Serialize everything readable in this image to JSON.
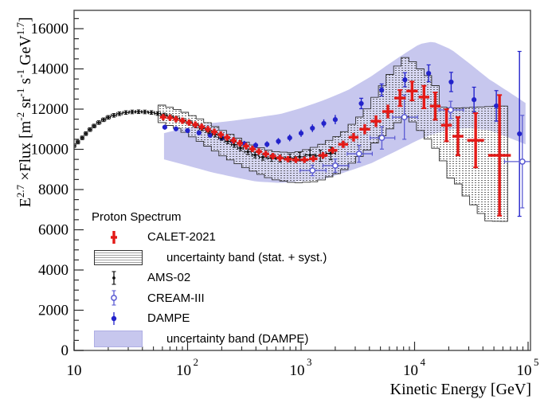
{
  "figure": {
    "background": "#ffffff"
  },
  "axes": {
    "x_label": "Kinetic Energy [GeV]",
    "y_label_segments": [
      {
        "t": "E",
        "sup": 0
      },
      {
        "t": "2.7",
        "sup": 1
      },
      {
        "t": " ×Flux [m",
        "sup": 0
      },
      {
        "t": "-2",
        "sup": 1
      },
      {
        "t": " sr",
        "sup": 0
      },
      {
        "t": "-1",
        "sup": 1
      },
      {
        "t": " s",
        "sup": 0
      },
      {
        "t": "-1",
        "sup": 1
      },
      {
        "t": " GeV",
        "sup": 0
      },
      {
        "t": "1.7",
        "sup": 1
      },
      {
        "t": "]",
        "sup": 0
      }
    ],
    "x_ticks": [
      {
        "v": 10,
        "base": "10",
        "exp": ""
      },
      {
        "v": 100,
        "base": "10",
        "exp": "2"
      },
      {
        "v": 1000,
        "base": "10",
        "exp": "3"
      },
      {
        "v": 10000,
        "base": "10",
        "exp": "4"
      },
      {
        "v": 100000,
        "base": "10",
        "exp": "5"
      }
    ],
    "y_ticks": [
      {
        "v": 0,
        "label": "0"
      },
      {
        "v": 2000,
        "label": "2000"
      },
      {
        "v": 4000,
        "label": "4000"
      },
      {
        "v": 6000,
        "label": "6000"
      },
      {
        "v": 8000,
        "label": "8000"
      },
      {
        "v": 10000,
        "label": "10000"
      },
      {
        "v": 12000,
        "label": "12000"
      },
      {
        "v": 14000,
        "label": "14000"
      },
      {
        "v": 16000,
        "label": "16000"
      }
    ]
  },
  "legend": {
    "title": "Proton Spectrum",
    "entries": [
      {
        "label": "CALET-2021",
        "marker": "calet"
      },
      {
        "label": "uncertainty band (stat. + syst.)",
        "marker": "band-hatched"
      },
      {
        "label": "AMS-02",
        "marker": "ams"
      },
      {
        "label": "CREAM-III",
        "marker": "cream"
      },
      {
        "label": "DAMPE",
        "marker": "dampe"
      },
      {
        "label": "uncertainty band (DAMPE)",
        "marker": "band-solid"
      }
    ]
  },
  "chart_data": {
    "type": "scatter",
    "title": "Proton Spectrum",
    "xlabel": "Kinetic Energy [GeV]",
    "ylabel": "E^2.7 x Flux [m^-2 sr^-1 s^-1 GeV^1.7]",
    "x_scale": "log",
    "xlim": [
      10,
      100000
    ],
    "ylim": [
      0,
      16900
    ],
    "grid": false,
    "colors": {
      "calet": "#e31a17",
      "ams": "#111111",
      "cream": "#5b5bd3",
      "dampe": "#2323cb",
      "dampe_band": "#c7c7ee",
      "hatch_outline": "#2f2f2f"
    },
    "series": [
      {
        "name": "DAMPE",
        "marker": "filled-circle",
        "points": [
          [
            63,
            11100,
            120
          ],
          [
            79,
            11020,
            120
          ],
          [
            100,
            10930,
            120
          ],
          [
            126,
            10820,
            120
          ],
          [
            158,
            10700,
            130
          ],
          [
            200,
            10560,
            130
          ],
          [
            251,
            10420,
            140
          ],
          [
            316,
            10280,
            140
          ],
          [
            398,
            10200,
            150
          ],
          [
            501,
            10250,
            150
          ],
          [
            631,
            10400,
            160
          ],
          [
            794,
            10570,
            170
          ],
          [
            1000,
            10800,
            180
          ],
          [
            1259,
            11050,
            190
          ],
          [
            1585,
            11290,
            200
          ],
          [
            2000,
            11480,
            230
          ],
          [
            3390,
            12280,
            260
          ],
          [
            5130,
            12950,
            300
          ],
          [
            8220,
            13460,
            350
          ],
          [
            13300,
            13780,
            420
          ],
          [
            21000,
            13350,
            480
          ],
          [
            33400,
            12470,
            620
          ],
          [
            52500,
            12160,
            760
          ],
          [
            84000,
            10770,
            4100
          ]
        ]
      },
      {
        "name": "CREAM-III",
        "marker": "open-circle",
        "points": [
          [
            1260,
            8950,
            260,
            980,
            1660
          ],
          [
            2000,
            9190,
            330,
            1560,
            2630
          ],
          [
            3240,
            9780,
            420,
            2550,
            4240
          ],
          [
            5150,
            10570,
            560,
            4060,
            6700
          ],
          [
            8130,
            11600,
            1100,
            6400,
            10600
          ],
          [
            20800,
            11960,
            430,
            16400,
            27000
          ],
          [
            89000,
            9390,
            2300,
            62000,
            108000
          ]
        ]
      },
      {
        "name": "AMS-02",
        "marker": "dot-errorbar",
        "points": [
          [
            10,
            10180,
            90
          ],
          [
            10.8,
            10360,
            90
          ],
          [
            11.8,
            10570,
            90
          ],
          [
            12.7,
            10780,
            90
          ],
          [
            13.8,
            10980,
            90
          ],
          [
            15,
            11160,
            90
          ],
          [
            16.5,
            11330,
            90
          ],
          [
            18.2,
            11470,
            90
          ],
          [
            20,
            11590,
            90
          ],
          [
            22.4,
            11690,
            90
          ],
          [
            25.1,
            11770,
            90
          ],
          [
            28.6,
            11830,
            90
          ],
          [
            32.5,
            11860,
            90
          ],
          [
            37,
            11870,
            90
          ],
          [
            42,
            11860,
            90
          ],
          [
            48,
            11830,
            90
          ],
          [
            54.5,
            11780,
            90
          ],
          [
            62,
            11710,
            90
          ],
          [
            70.6,
            11630,
            90
          ],
          [
            80.3,
            11540,
            100
          ],
          [
            91.5,
            11430,
            100
          ],
          [
            104,
            11310,
            110
          ],
          [
            118.5,
            11180,
            110
          ],
          [
            135,
            11040,
            110
          ],
          [
            154,
            10890,
            110
          ],
          [
            175,
            10740,
            120
          ],
          [
            199,
            10570,
            120
          ],
          [
            226,
            10400,
            120
          ],
          [
            258,
            10230,
            130
          ],
          [
            293,
            10060,
            130
          ],
          [
            340,
            9880,
            140
          ],
          [
            393,
            9720,
            140
          ],
          [
            461,
            9610,
            150
          ],
          [
            550,
            9560,
            160
          ],
          [
            655,
            9540,
            170
          ],
          [
            798,
            9570,
            190
          ],
          [
            972,
            9630,
            210
          ],
          [
            1199,
            9720,
            240
          ],
          [
            1479,
            9680,
            280
          ],
          [
            1825,
            9800,
            320
          ]
        ]
      },
      {
        "name": "CALET-2021",
        "marker": "thick-cross",
        "points": [
          [
            61,
            11600,
            0
          ],
          [
            70,
            11570,
            0
          ],
          [
            79,
            11500,
            0
          ],
          [
            90,
            11420,
            0
          ],
          [
            103,
            11330,
            0
          ],
          [
            117,
            11230,
            0
          ],
          [
            133,
            11120,
            0
          ],
          [
            151,
            11000,
            0
          ],
          [
            172,
            10870,
            0
          ],
          [
            196,
            10730,
            0
          ],
          [
            223,
            10590,
            0
          ],
          [
            254,
            10440,
            0
          ],
          [
            289,
            10300,
            0
          ],
          [
            328,
            10160,
            0
          ],
          [
            373,
            10020,
            0
          ],
          [
            425,
            9890,
            0
          ],
          [
            489,
            9770,
            0
          ],
          [
            564,
            9660,
            0
          ],
          [
            651,
            9570,
            0
          ],
          [
            765,
            9510,
            0
          ],
          [
            899,
            9480,
            0
          ],
          [
            1070,
            9480,
            100
          ],
          [
            1280,
            9530,
            110
          ],
          [
            1560,
            9700,
            130
          ],
          [
            1900,
            9950,
            150
          ],
          [
            2350,
            10250,
            180
          ],
          [
            2900,
            10600,
            210
          ],
          [
            3640,
            11000,
            250
          ],
          [
            4570,
            11400,
            290
          ],
          [
            5820,
            11880,
            340
          ],
          [
            7440,
            12550,
            400
          ],
          [
            9500,
            12900,
            470
          ],
          [
            12100,
            12600,
            560
          ],
          [
            15200,
            12150,
            680
          ],
          [
            19100,
            11200,
            800
          ],
          [
            24100,
            10650,
            950
          ],
          [
            34500,
            10450,
            1350
          ],
          [
            56000,
            9700,
            3000
          ]
        ]
      }
    ],
    "bands": [
      {
        "name": "uncertainty band (DAMPE)",
        "style": "solid",
        "points": [
          [
            62,
            10800,
            9500
          ],
          [
            100,
            11100,
            9190
          ],
          [
            160,
            11300,
            8870
          ],
          [
            250,
            11420,
            8630
          ],
          [
            400,
            11580,
            8400
          ],
          [
            650,
            11750,
            8330
          ],
          [
            1000,
            12050,
            8400
          ],
          [
            1600,
            12450,
            8520
          ],
          [
            2600,
            12950,
            8910
          ],
          [
            4200,
            13650,
            9320
          ],
          [
            6800,
            14470,
            9900
          ],
          [
            11000,
            15230,
            10490
          ],
          [
            14500,
            15360,
            10750
          ],
          [
            21000,
            14970,
            11000
          ],
          [
            30000,
            14300,
            11050
          ],
          [
            45000,
            13500,
            10950
          ],
          [
            70000,
            12800,
            10550
          ],
          [
            95000,
            12300,
            10250
          ]
        ]
      },
      {
        "name": "uncertainty band (stat. + syst.)",
        "style": "hatched",
        "points": [
          [
            55,
            12250,
            11400
          ],
          [
            85,
            11950,
            11000
          ],
          [
            130,
            11500,
            10380
          ],
          [
            210,
            10900,
            9630
          ],
          [
            340,
            10300,
            9030
          ],
          [
            550,
            9900,
            8520
          ],
          [
            880,
            9820,
            8330
          ],
          [
            1400,
            10150,
            8400
          ],
          [
            2300,
            10780,
            8900
          ],
          [
            3700,
            11900,
            9900
          ],
          [
            6000,
            13700,
            11000
          ],
          [
            8500,
            14650,
            11700
          ],
          [
            11700,
            13900,
            10820
          ],
          [
            14800,
            13400,
            10170
          ],
          [
            17600,
            12100,
            9500
          ],
          [
            20500,
            12050,
            8600
          ],
          [
            25200,
            12050,
            8200
          ],
          [
            29300,
            12080,
            7520
          ],
          [
            36300,
            12100,
            7010
          ],
          [
            42700,
            12120,
            6450
          ],
          [
            54100,
            12150,
            6420
          ],
          [
            66000,
            12150,
            6420
          ]
        ]
      }
    ]
  }
}
